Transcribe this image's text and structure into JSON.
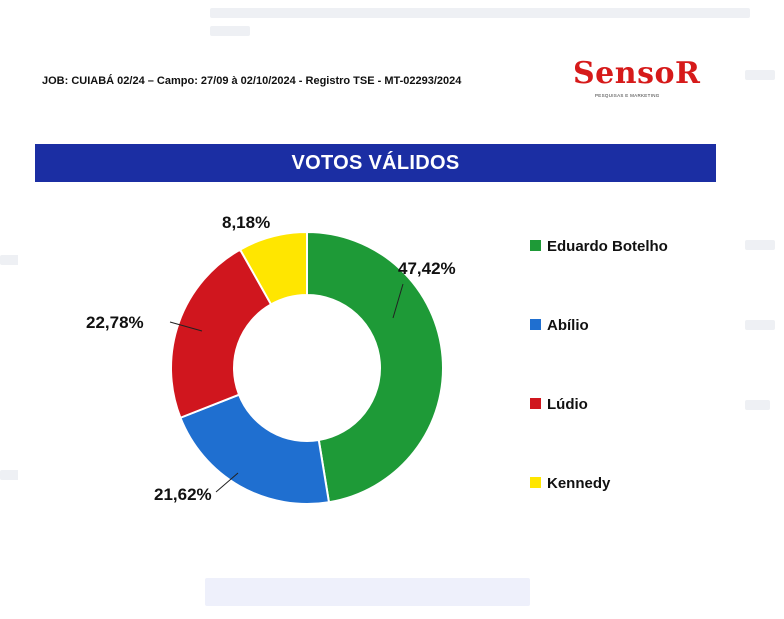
{
  "header": {
    "job_line": "JOB: CUIABÁ 02/24 – Campo: 27/09 à 02/10/2024  - Registro TSE - MT-02293/2024",
    "logo_text": "SensoR",
    "logo_tagline": "PESQUISAS E MARKETING"
  },
  "banner": {
    "title": "VOTOS VÁLIDOS"
  },
  "chart_data": {
    "type": "pie",
    "donut": true,
    "title": "VOTOS VÁLIDOS",
    "legend_position": "right",
    "series": [
      {
        "name": "Eduardo Botelho",
        "value": 47.42,
        "label": "47,42%",
        "color": "#1e9a37"
      },
      {
        "name": "Abílio",
        "value": 21.62,
        "label": "21,62%",
        "color": "#1f6fd0"
      },
      {
        "name": "Lúdio",
        "value": 22.78,
        "label": "22,78%",
        "color": "#d0161e"
      },
      {
        "name": "Kennedy",
        "value": 8.18,
        "label": "8,18%",
        "color": "#ffe600"
      }
    ]
  }
}
